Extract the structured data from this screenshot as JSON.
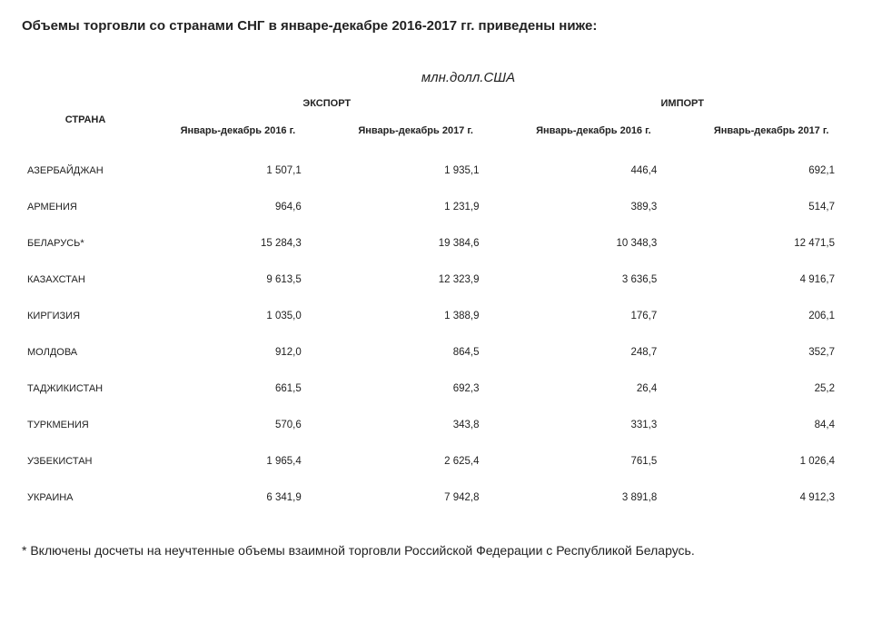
{
  "title": "Объемы торговли со странами СНГ в январе-декабре 2016-2017 гг. приведены ниже:",
  "unit_label": "млн.долл.США",
  "headers": {
    "country": "СТРАНА",
    "export": "ЭКСПОРТ",
    "import": "ИМПОРТ",
    "period_2016": "Январь-декабрь  2016 г.",
    "period_2017": "Январь-декабрь 2017 г."
  },
  "rows": [
    {
      "country": "АЗЕРБАЙДЖАН",
      "exp2016": "1 507,1",
      "exp2017": "1 935,1",
      "imp2016": "446,4",
      "imp2017": "692,1"
    },
    {
      "country": "АРМЕНИЯ",
      "exp2016": "964,6",
      "exp2017": "1 231,9",
      "imp2016": "389,3",
      "imp2017": "514,7"
    },
    {
      "country": "БЕЛАРУСЬ*",
      "exp2016": "15 284,3",
      "exp2017": "19 384,6",
      "imp2016": "10 348,3",
      "imp2017": "12 471,5"
    },
    {
      "country": "КАЗАХСТАН",
      "exp2016": "9 613,5",
      "exp2017": "12 323,9",
      "imp2016": "3 636,5",
      "imp2017": "4 916,7"
    },
    {
      "country": "КИРГИЗИЯ",
      "exp2016": "1 035,0",
      "exp2017": "1 388,9",
      "imp2016": "176,7",
      "imp2017": "206,1"
    },
    {
      "country": "МОЛДОВА",
      "exp2016": "912,0",
      "exp2017": "864,5",
      "imp2016": "248,7",
      "imp2017": "352,7"
    },
    {
      "country": "ТАДЖИКИСТАН",
      "exp2016": "661,5",
      "exp2017": "692,3",
      "imp2016": "26,4",
      "imp2017": "25,2"
    },
    {
      "country": "ТУРКМЕНИЯ",
      "exp2016": "570,6",
      "exp2017": "343,8",
      "imp2016": "331,3",
      "imp2017": "84,4"
    },
    {
      "country": "УЗБЕКИСТАН",
      "exp2016": "1 965,4",
      "exp2017": "2 625,4",
      "imp2016": "761,5",
      "imp2017": "1 026,4"
    },
    {
      "country": "УКРАИНА",
      "exp2016": "6 341,9",
      "exp2017": "7 942,8",
      "imp2016": "3 891,8",
      "imp2017": "4 912,3"
    }
  ],
  "footnote": "* Включены досчеты на неучтенные объемы взаимной торговли Российской Федерации  с  Республикой  Беларусь."
}
